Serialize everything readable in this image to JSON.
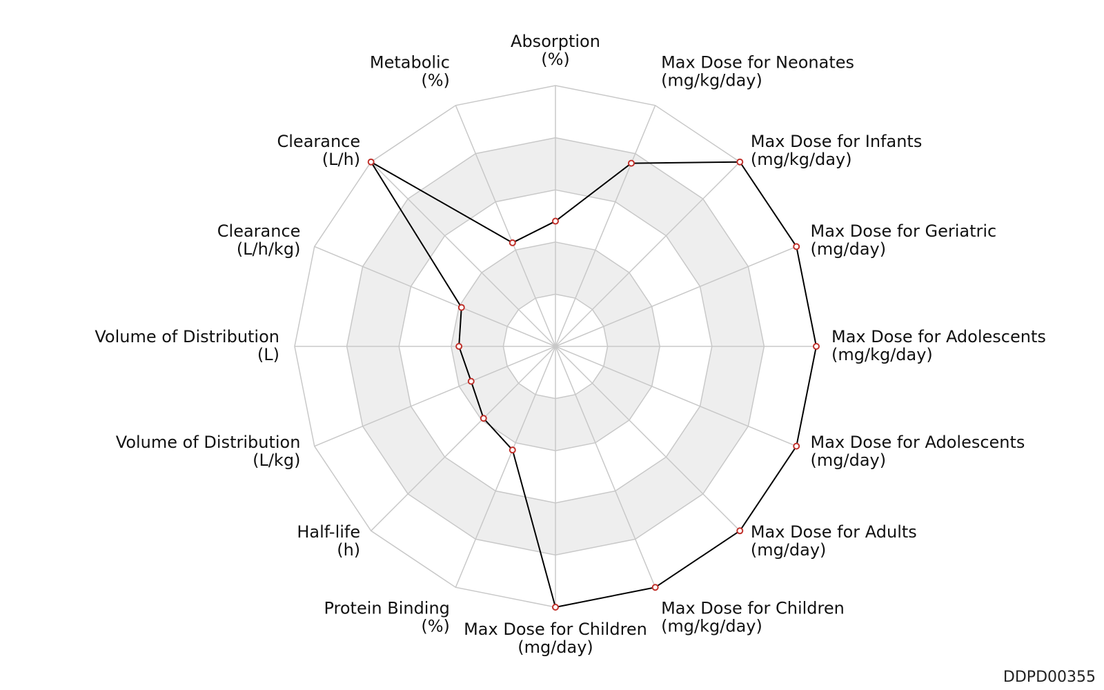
{
  "chart_data": {
    "type": "radar",
    "chart_id": "DDPD00355",
    "rings": 5,
    "range": [
      0,
      1
    ],
    "colors": {
      "band_fill": "#eeeeee",
      "grid_line": "#c8c8c8",
      "series_line": "#000000",
      "marker_fill": "#ffffff",
      "marker_stroke": "#c0302a"
    },
    "axes": [
      {
        "name": "Absorption",
        "unit": "(%)",
        "value": 0.48
      },
      {
        "name": "Max Dose for Neonates",
        "unit": "(mg/kg/day)",
        "value": 0.76
      },
      {
        "name": "Max Dose for Infants",
        "unit": "(mg/kg/day)",
        "value": 1.0
      },
      {
        "name": "Max Dose for Geriatric",
        "unit": "(mg/day)",
        "value": 1.0
      },
      {
        "name": "Max Dose for Adolescents",
        "unit": "(mg/kg/day)",
        "value": 1.0
      },
      {
        "name": "Max Dose for Adolescents",
        "unit": "(mg/day)",
        "value": 1.0
      },
      {
        "name": "Max Dose for Adults",
        "unit": "(mg/day)",
        "value": 1.0
      },
      {
        "name": "Max Dose for Children",
        "unit": "(mg/kg/day)",
        "value": 1.0
      },
      {
        "name": "Max Dose for Children",
        "unit": "(mg/day)",
        "value": 1.0
      },
      {
        "name": "Protein Binding",
        "unit": "(%)",
        "value": 0.43
      },
      {
        "name": "Half-life",
        "unit": "(h)",
        "value": 0.39
      },
      {
        "name": "Volume of Distribution",
        "unit": "(L/kg)",
        "value": 0.35
      },
      {
        "name": "Volume of Distribution",
        "unit": "(L)",
        "value": 0.37
      },
      {
        "name": "Clearance",
        "unit": "(L/h/kg)",
        "value": 0.39
      },
      {
        "name": "Clearance",
        "unit": "(L/h)",
        "value": 1.0
      },
      {
        "name": "Metabolic",
        "unit": "(%)",
        "value": 0.43
      }
    ]
  }
}
